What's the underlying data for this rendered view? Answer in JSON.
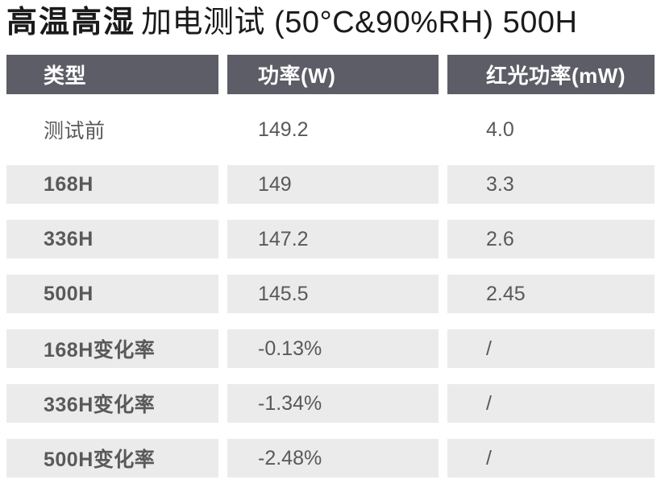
{
  "title": {
    "emphasis": "高温高湿",
    "rest": "加电测试 (50°C&90%RH) 500H"
  },
  "colors": {
    "header_bg": "#5d5d67",
    "header_text": "#ffffff",
    "row_bg": "#ebebeb",
    "body_text": "#595959",
    "title_text": "#1a1a1a"
  },
  "table": {
    "headers": [
      "类型",
      "功率(W)",
      "红光功率(mW)"
    ],
    "rows": [
      {
        "cells": [
          "测试前",
          "149.2",
          "4.0"
        ]
      },
      {
        "cells": [
          "168H",
          "149",
          "3.3"
        ]
      },
      {
        "cells": [
          "336H",
          "147.2",
          "2.6"
        ]
      },
      {
        "cells": [
          "500H",
          "145.5",
          "2.45"
        ]
      },
      {
        "cells": [
          "168H变化率",
          "-0.13%",
          "/"
        ]
      },
      {
        "cells": [
          "336H变化率",
          "-1.34%",
          "/"
        ]
      },
      {
        "cells": [
          "500H变化率",
          "-2.48%",
          "/"
        ]
      }
    ]
  },
  "chart_data": {
    "type": "table",
    "title": "高温高湿 加电测试 (50°C&90%RH) 500H",
    "columns": [
      "类型",
      "功率(W)",
      "红光功率(mW)"
    ],
    "rows": [
      [
        "测试前",
        149.2,
        4.0
      ],
      [
        "168H",
        149,
        3.3
      ],
      [
        "336H",
        147.2,
        2.6
      ],
      [
        "500H",
        145.5,
        2.45
      ],
      [
        "168H变化率",
        "-0.13%",
        "/"
      ],
      [
        "336H变化率",
        "-1.34%",
        "/"
      ],
      [
        "500H变化率",
        "-2.48%",
        "/"
      ]
    ]
  }
}
